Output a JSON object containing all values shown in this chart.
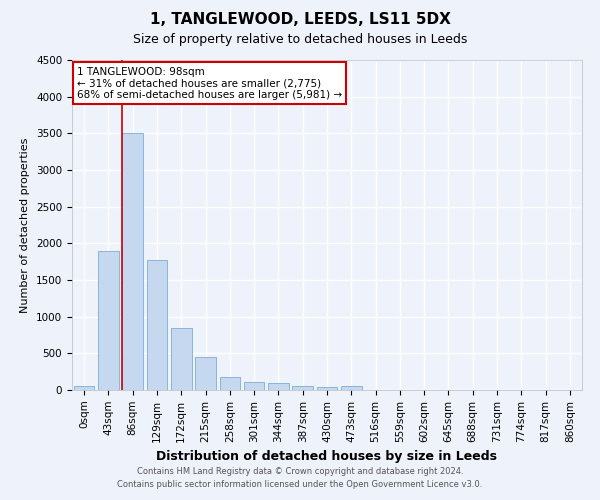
{
  "title1": "1, TANGLEWOOD, LEEDS, LS11 5DX",
  "title2": "Size of property relative to detached houses in Leeds",
  "xlabel": "Distribution of detached houses by size in Leeds",
  "ylabel": "Number of detached properties",
  "bar_labels": [
    "0sqm",
    "43sqm",
    "86sqm",
    "129sqm",
    "172sqm",
    "215sqm",
    "258sqm",
    "301sqm",
    "344sqm",
    "387sqm",
    "430sqm",
    "473sqm",
    "516sqm",
    "559sqm",
    "602sqm",
    "645sqm",
    "688sqm",
    "731sqm",
    "774sqm",
    "817sqm",
    "860sqm"
  ],
  "bar_values": [
    50,
    1900,
    3500,
    1775,
    850,
    450,
    175,
    110,
    90,
    60,
    45,
    50,
    0,
    0,
    0,
    0,
    0,
    0,
    0,
    0,
    0
  ],
  "bar_color": "#c5d8ef",
  "bar_edge_color": "#7bafd4",
  "ylim": [
    0,
    4500
  ],
  "yticks": [
    0,
    500,
    1000,
    1500,
    2000,
    2500,
    3000,
    3500,
    4000,
    4500
  ],
  "property_line_bar_index": 2,
  "annotation_title": "1 TANGLEWOOD: 98sqm",
  "annotation_line1": "← 31% of detached houses are smaller (2,775)",
  "annotation_line2": "68% of semi-detached houses are larger (5,981) →",
  "annotation_box_color": "#ffffff",
  "annotation_box_edge_color": "#cc0000",
  "property_line_color": "#cc0000",
  "footer1": "Contains HM Land Registry data © Crown copyright and database right 2024.",
  "footer2": "Contains public sector information licensed under the Open Government Licence v3.0.",
  "background_color": "#eef2fa",
  "grid_color": "#ffffff",
  "title1_fontsize": 11,
  "title2_fontsize": 9,
  "ylabel_fontsize": 8,
  "xlabel_fontsize": 9,
  "tick_fontsize": 7.5,
  "annotation_fontsize": 7.5,
  "footer_fontsize": 6
}
